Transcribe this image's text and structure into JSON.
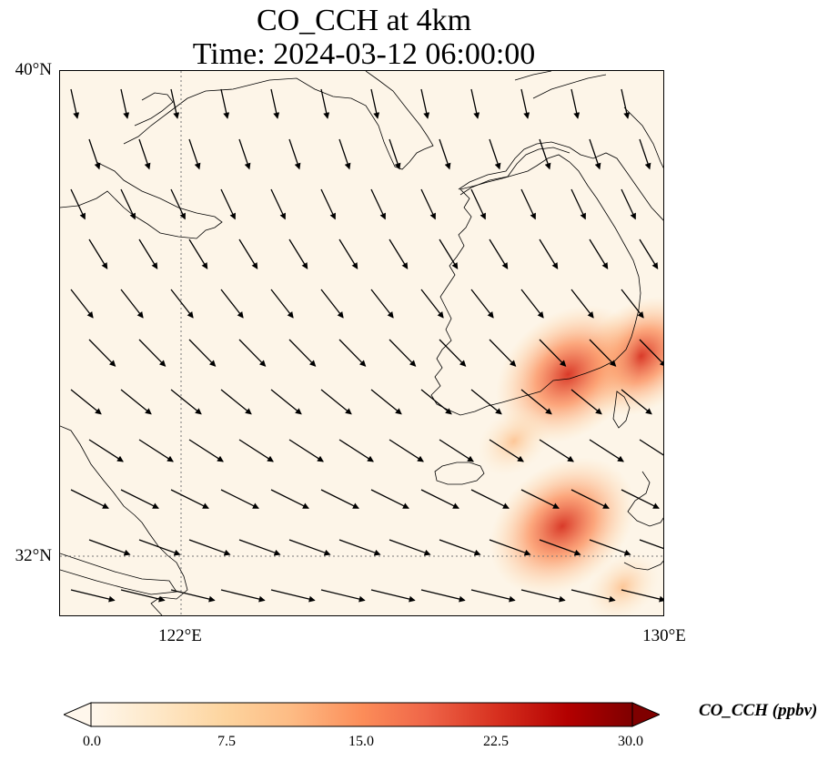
{
  "title": {
    "line1": "CO_CCH at 4km",
    "line2": "Time: 2024-03-12 06:00:00"
  },
  "axes": {
    "lat_labels": [
      "40°N",
      "32°N"
    ],
    "lon_labels": [
      "122°E",
      "130°E"
    ],
    "extent": {
      "lon_min": 120,
      "lon_max": 130,
      "lat_min": 31,
      "lat_max": 40
    },
    "gridlines": {
      "lon": [
        122
      ],
      "lat": [
        32
      ],
      "style": "dotted"
    }
  },
  "colorbar": {
    "label": "CO_CCH (ppbv)",
    "ticks": [
      "0.0",
      "7.5",
      "15.0",
      "22.5",
      "30.0"
    ],
    "min": 0,
    "max": 30,
    "extend": "both",
    "colormap": "OrRd",
    "colors": [
      "#fff7ec",
      "#fee8c8",
      "#fdd49e",
      "#fdbb84",
      "#fc8d59",
      "#ef6548",
      "#d7301f",
      "#b30000",
      "#7f0000"
    ]
  },
  "map": {
    "background_color": "#fdf5e8",
    "coastline_color": "#000000",
    "wind_arrow_color": "#000000",
    "plumes": [
      {
        "lon": 129.6,
        "lat": 35.3,
        "value": 14
      },
      {
        "lon": 128.4,
        "lat": 35.0,
        "value": 17
      },
      {
        "lon": 127.5,
        "lat": 33.9,
        "value": 6
      },
      {
        "lon": 128.3,
        "lat": 32.5,
        "value": 17
      },
      {
        "lon": 129.3,
        "lat": 31.5,
        "value": 6
      }
    ]
  }
}
